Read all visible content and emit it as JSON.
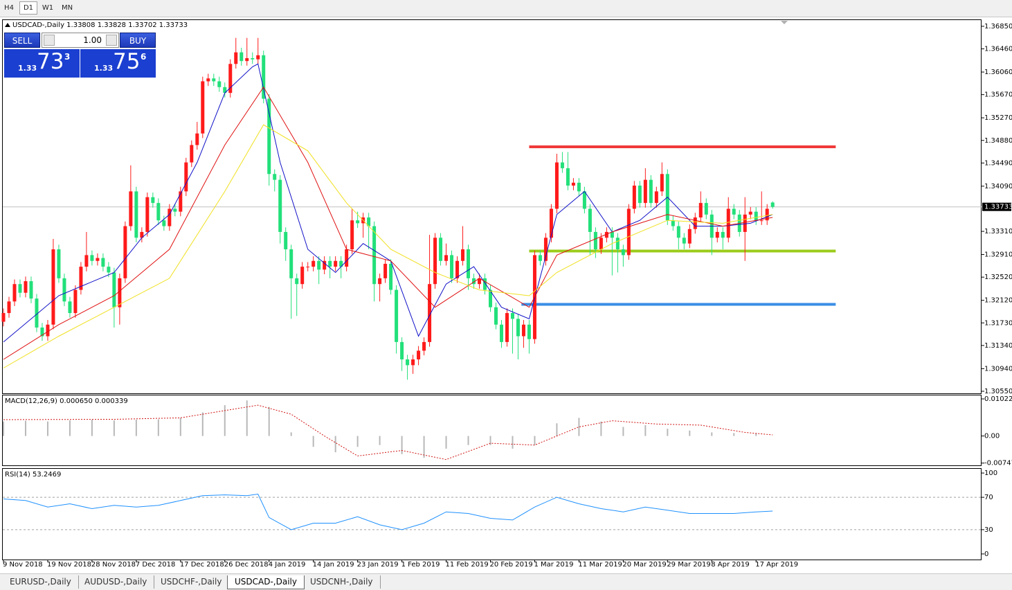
{
  "toolbar": {
    "timeframes": [
      "H4",
      "D1",
      "W1",
      "MN"
    ]
  },
  "trade_panel": {
    "sell": "SELL",
    "lot": "1.00",
    "buy": "BUY",
    "bid": {
      "big": "1.33",
      "pips": "73",
      "frac": "3"
    },
    "ask": {
      "big": "1.33",
      "pips": "75",
      "frac": "6"
    }
  },
  "chart_data": [
    {
      "type": "candlestick",
      "title": "USDCAD-,Daily  1.33808 1.33828 1.33702 1.33733",
      "up_color": "#ff1a1a",
      "down_color": "#22e07a",
      "xlim": [
        -0.125,
        176.75
      ],
      "xticks": [
        {
          "value": 0,
          "label": "9 Nov 2018"
        },
        {
          "value": 8,
          "label": "19 Nov 2018"
        },
        {
          "value": 16,
          "label": "28 Nov 2018"
        },
        {
          "value": 24,
          "label": "7 Dec 2018"
        },
        {
          "value": 32,
          "label": "17 Dec 2018"
        },
        {
          "value": 40,
          "label": "26 Dec 2018"
        },
        {
          "value": 48,
          "label": "4 Jan 2019"
        },
        {
          "value": 56,
          "label": "14 Jan 2019"
        },
        {
          "value": 64,
          "label": "23 Jan 2019"
        },
        {
          "value": 72,
          "label": "1 Feb 2019"
        },
        {
          "value": 80,
          "label": "11 Feb 2019"
        },
        {
          "value": 88,
          "label": "20 Feb 2019"
        },
        {
          "value": 96,
          "label": "1 Mar 2019"
        },
        {
          "value": 104,
          "label": "11 Mar 2019"
        },
        {
          "value": 112,
          "label": "20 Mar 2019"
        },
        {
          "value": 120,
          "label": "29 Mar 2019"
        },
        {
          "value": 128,
          "label": "8 Apr 2019"
        },
        {
          "value": 136,
          "label": "17 Apr 2019"
        }
      ],
      "ylim": [
        1.30514,
        1.36957
      ],
      "yticks": [
        {
          "value": 1.3685,
          "label": "1.36850"
        },
        {
          "value": 1.3646,
          "label": "1.36460"
        },
        {
          "value": 1.3606,
          "label": "1.36060"
        },
        {
          "value": 1.3567,
          "label": "1.35670"
        },
        {
          "value": 1.3527,
          "label": "1.35270"
        },
        {
          "value": 1.3488,
          "label": "1.34880"
        },
        {
          "value": 1.3449,
          "label": "1.34490"
        },
        {
          "value": 1.3409,
          "label": "1.34090"
        },
        {
          "value": 1.3331,
          "label": "1.33310"
        },
        {
          "value": 1.3291,
          "label": "1.32910"
        },
        {
          "value": 1.3252,
          "label": "1.32520"
        },
        {
          "value": 1.3212,
          "label": "1.32120"
        },
        {
          "value": 1.3173,
          "label": "1.31730"
        },
        {
          "value": 1.3134,
          "label": "1.31340"
        },
        {
          "value": 1.3094,
          "label": "1.30940"
        },
        {
          "value": 1.3055,
          "label": "1.30550"
        }
      ],
      "current_price": 1.33733,
      "open": [
        1.3175,
        1.319,
        1.321,
        1.324,
        1.3225,
        1.3245,
        1.3215,
        1.3165,
        1.315,
        1.317,
        1.33,
        1.325,
        1.321,
        1.319,
        1.323,
        1.327,
        1.329,
        1.328,
        1.3285,
        1.327,
        1.326,
        1.32,
        1.325,
        1.334,
        1.34,
        1.332,
        1.333,
        1.339,
        1.338,
        1.335,
        1.334,
        1.337,
        1.3365,
        1.34,
        1.345,
        1.348,
        1.35,
        1.359,
        1.3595,
        1.359,
        1.358,
        1.357,
        1.362,
        1.364,
        1.3625,
        1.363,
        1.3628,
        1.3635,
        1.356,
        1.343,
        1.342,
        1.333,
        1.33,
        1.325,
        1.324,
        1.327,
        1.327,
        1.328,
        1.3265,
        1.328,
        1.327,
        1.328,
        1.327,
        1.33,
        1.335,
        1.3345,
        1.3355,
        1.334,
        1.324,
        1.325,
        1.3275,
        1.323,
        1.314,
        1.311,
        1.31,
        1.311,
        1.3125,
        1.314,
        1.324,
        1.332,
        1.328,
        1.329,
        1.325,
        1.328,
        1.33,
        1.325,
        1.324,
        1.325,
        1.323,
        1.32,
        1.317,
        1.314,
        1.319,
        1.318,
        1.315,
        1.317,
        1.3145,
        1.329,
        1.328,
        1.332,
        1.337,
        1.345,
        1.344,
        1.341,
        1.3415,
        1.34,
        1.337,
        1.333,
        1.33,
        1.332,
        1.333,
        1.332,
        1.33,
        1.329,
        1.337,
        1.341,
        1.338,
        1.342,
        1.338,
        1.34,
        1.343,
        1.335,
        1.334,
        1.332,
        1.331,
        1.3335,
        1.3355,
        1.338,
        1.336,
        1.332,
        1.333,
        1.332,
        1.337,
        1.336,
        1.333,
        1.336,
        1.3365,
        1.335,
        1.335,
        1.33808
      ],
      "high": [
        1.3198,
        1.3218,
        1.3248,
        1.3248,
        1.3253,
        1.3253,
        1.3223,
        1.3173,
        1.3178,
        1.3318,
        1.3308,
        1.3258,
        1.3218,
        1.3238,
        1.3278,
        1.333,
        1.3298,
        1.3293,
        1.3293,
        1.3278,
        1.3268,
        1.3258,
        1.3348,
        1.3445,
        1.3408,
        1.3338,
        1.3398,
        1.3398,
        1.3388,
        1.3358,
        1.3378,
        1.3378,
        1.3408,
        1.3458,
        1.3488,
        1.352,
        1.3598,
        1.3603,
        1.3603,
        1.3598,
        1.3588,
        1.3628,
        1.3665,
        1.3648,
        1.3665,
        1.364,
        1.3665,
        1.3643,
        1.3568,
        1.3438,
        1.3428,
        1.3338,
        1.3308,
        1.3258,
        1.3278,
        1.3278,
        1.3288,
        1.3288,
        1.3288,
        1.3288,
        1.3288,
        1.3288,
        1.3308,
        1.337,
        1.3365,
        1.3363,
        1.3363,
        1.3348,
        1.3258,
        1.3283,
        1.3283,
        1.3238,
        1.3148,
        1.3118,
        1.3118,
        1.3133,
        1.3148,
        1.3325,
        1.3328,
        1.3328,
        1.331,
        1.3298,
        1.3288,
        1.334,
        1.3308,
        1.3258,
        1.3258,
        1.3258,
        1.3238,
        1.3208,
        1.3178,
        1.3198,
        1.3198,
        1.3188,
        1.3178,
        1.3178,
        1.3298,
        1.3298,
        1.3328,
        1.3378,
        1.3465,
        1.3468,
        1.3468,
        1.3423,
        1.3423,
        1.3408,
        1.3378,
        1.3338,
        1.3328,
        1.3338,
        1.3338,
        1.3328,
        1.3308,
        1.3378,
        1.3418,
        1.3418,
        1.344,
        1.3428,
        1.3408,
        1.345,
        1.3438,
        1.3358,
        1.3348,
        1.3328,
        1.3343,
        1.3363,
        1.34,
        1.3388,
        1.3368,
        1.3338,
        1.3338,
        1.339,
        1.3378,
        1.3368,
        1.339,
        1.3373,
        1.3373,
        1.34,
        1.3378,
        1.33828
      ],
      "low": [
        1.3167,
        1.3182,
        1.3202,
        1.3217,
        1.3217,
        1.3207,
        1.3157,
        1.3142,
        1.3142,
        1.3162,
        1.3242,
        1.3202,
        1.3182,
        1.3182,
        1.3222,
        1.3262,
        1.3272,
        1.3272,
        1.3262,
        1.3252,
        1.3165,
        1.317,
        1.3242,
        1.3332,
        1.3312,
        1.3312,
        1.3322,
        1.3372,
        1.3342,
        1.3332,
        1.3332,
        1.3357,
        1.3357,
        1.3392,
        1.3442,
        1.3472,
        1.3492,
        1.3582,
        1.3582,
        1.3572,
        1.3562,
        1.3562,
        1.3612,
        1.3617,
        1.3617,
        1.362,
        1.362,
        1.3552,
        1.341,
        1.34,
        1.331,
        1.328,
        1.318,
        1.3185,
        1.3232,
        1.3262,
        1.3262,
        1.324,
        1.3257,
        1.325,
        1.3262,
        1.325,
        1.3262,
        1.3292,
        1.3337,
        1.332,
        1.33,
        1.321,
        1.321,
        1.3242,
        1.3222,
        1.312,
        1.309,
        1.3075,
        1.3085,
        1.31,
        1.3117,
        1.3132,
        1.3232,
        1.3272,
        1.3272,
        1.3242,
        1.3242,
        1.3272,
        1.323,
        1.3232,
        1.3232,
        1.3222,
        1.3192,
        1.3162,
        1.313,
        1.3132,
        1.312,
        1.311,
        1.313,
        1.312,
        1.3137,
        1.3272,
        1.3272,
        1.3312,
        1.3362,
        1.3432,
        1.3402,
        1.3402,
        1.3392,
        1.3362,
        1.329,
        1.3285,
        1.3292,
        1.3312,
        1.3255,
        1.326,
        1.327,
        1.3282,
        1.3362,
        1.3372,
        1.3372,
        1.3372,
        1.3372,
        1.3392,
        1.3342,
        1.3332,
        1.33,
        1.33,
        1.3302,
        1.3327,
        1.3347,
        1.3352,
        1.329,
        1.3312,
        1.33,
        1.3312,
        1.3352,
        1.3322,
        1.328,
        1.3352,
        1.3342,
        1.3342,
        1.3342,
        1.33702
      ],
      "close": [
        1.319,
        1.321,
        1.324,
        1.3225,
        1.3245,
        1.3215,
        1.3165,
        1.315,
        1.317,
        1.33,
        1.325,
        1.321,
        1.319,
        1.323,
        1.327,
        1.329,
        1.328,
        1.3285,
        1.327,
        1.326,
        1.32,
        1.325,
        1.334,
        1.34,
        1.332,
        1.333,
        1.339,
        1.338,
        1.335,
        1.334,
        1.337,
        1.3365,
        1.34,
        1.345,
        1.348,
        1.35,
        1.359,
        1.3595,
        1.359,
        1.358,
        1.357,
        1.362,
        1.364,
        1.3625,
        1.363,
        1.3628,
        1.3635,
        1.356,
        1.343,
        1.342,
        1.333,
        1.33,
        1.325,
        1.324,
        1.327,
        1.327,
        1.328,
        1.3265,
        1.328,
        1.327,
        1.328,
        1.327,
        1.33,
        1.335,
        1.3345,
        1.3355,
        1.334,
        1.324,
        1.325,
        1.3275,
        1.323,
        1.314,
        1.311,
        1.31,
        1.311,
        1.3125,
        1.314,
        1.324,
        1.332,
        1.328,
        1.329,
        1.325,
        1.328,
        1.33,
        1.325,
        1.324,
        1.325,
        1.323,
        1.32,
        1.317,
        1.314,
        1.319,
        1.318,
        1.315,
        1.317,
        1.3145,
        1.329,
        1.328,
        1.332,
        1.337,
        1.345,
        1.344,
        1.341,
        1.3415,
        1.34,
        1.337,
        1.333,
        1.33,
        1.332,
        1.333,
        1.332,
        1.33,
        1.329,
        1.337,
        1.341,
        1.338,
        1.342,
        1.338,
        1.34,
        1.343,
        1.335,
        1.334,
        1.332,
        1.331,
        1.3335,
        1.3355,
        1.338,
        1.336,
        1.332,
        1.333,
        1.332,
        1.337,
        1.336,
        1.333,
        1.336,
        1.3365,
        1.335,
        1.335,
        1.337,
        1.33733
      ],
      "series": [
        {
          "color": "#1010c8",
          "x": [
            0,
            10,
            20,
            25,
            30,
            35,
            40,
            45,
            46,
            50,
            55,
            60,
            65,
            70,
            75,
            80,
            85,
            90,
            95,
            100,
            105,
            110,
            115,
            120,
            125,
            130,
            135,
            139
          ],
          "values": [
            1.314,
            1.322,
            1.326,
            1.332,
            1.336,
            1.345,
            1.357,
            1.3615,
            1.362,
            1.345,
            1.33,
            1.326,
            1.331,
            1.328,
            1.315,
            1.324,
            1.327,
            1.32,
            1.318,
            1.336,
            1.34,
            1.333,
            1.335,
            1.339,
            1.334,
            1.334,
            1.3345,
            1.336
          ]
        },
        {
          "color": "#e01010",
          "x": [
            0,
            10,
            20,
            30,
            40,
            47,
            55,
            62,
            70,
            78,
            86,
            95,
            100,
            110,
            120,
            130,
            139
          ],
          "values": [
            1.311,
            1.317,
            1.322,
            1.33,
            1.348,
            1.358,
            1.345,
            1.33,
            1.328,
            1.32,
            1.325,
            1.32,
            1.329,
            1.333,
            1.336,
            1.334,
            1.3355
          ]
        },
        {
          "color": "#f0e020",
          "x": [
            0,
            10,
            20,
            30,
            40,
            47,
            55,
            62,
            70,
            78,
            86,
            95,
            100,
            110,
            120,
            130,
            139
          ],
          "values": [
            1.3095,
            1.315,
            1.32,
            1.325,
            1.34,
            1.3515,
            1.347,
            1.338,
            1.33,
            1.326,
            1.323,
            1.322,
            1.326,
            1.331,
            1.335,
            1.3345,
            1.336
          ]
        }
      ],
      "levels": [
        {
          "value": 1.3477,
          "color": "#f03a3a",
          "x": [
            95,
            150.4
          ]
        },
        {
          "value": 1.3297,
          "color": "#9ccc1c",
          "x": [
            95,
            150.4
          ]
        },
        {
          "value": 1.3205,
          "color": "#3a8ee6",
          "x": [
            93.6,
            150.4
          ]
        }
      ]
    },
    {
      "type": "macd",
      "title": "MACD(12,26,9) 0.000650 0.000339",
      "ylim": [
        -0.0081,
        0.01119
      ],
      "yticks": [
        0.010229,
        {
          "value": 0,
          "label": "0.00"
        },
        -0.007477
      ],
      "series": [
        {
          "style": "bar",
          "color": "#b8b8b8",
          "x": [
            0,
            4,
            8,
            12,
            16,
            20,
            24,
            28,
            32,
            36,
            40,
            44,
            48,
            52,
            56,
            60,
            64,
            68,
            72,
            76,
            80,
            84,
            88,
            92,
            96,
            100,
            104,
            108,
            112,
            116,
            120,
            124,
            128,
            132,
            136
          ],
          "values": [
            0.004,
            0.0042,
            0.004,
            0.0043,
            0.0045,
            0.0043,
            0.0045,
            0.0046,
            0.005,
            0.0065,
            0.0085,
            0.0098,
            0.008,
            0.001,
            -0.003,
            -0.0045,
            -0.003,
            -0.0025,
            -0.005,
            -0.006,
            -0.0035,
            -0.0025,
            -0.0025,
            -0.0035,
            -0.0025,
            0.0035,
            0.005,
            0.004,
            0.0025,
            0.003,
            0.002,
            0.0015,
            0.001,
            0.0008,
            0.0007
          ]
        },
        {
          "style": "dotted",
          "color": "#d01010",
          "x": [
            0,
            20,
            32,
            40,
            46,
            52,
            58,
            64,
            72,
            80,
            88,
            96,
            104,
            110,
            118,
            126,
            134,
            139
          ],
          "values": [
            0.0045,
            0.0046,
            0.005,
            0.007,
            0.0085,
            0.006,
            0,
            -0.0055,
            -0.004,
            -0.0065,
            -0.002,
            -0.0025,
            0.0025,
            0.0042,
            0.0033,
            0.003,
            0.001,
            0.0003
          ]
        }
      ]
    },
    {
      "type": "line",
      "title": "RSI(14) 53.2469",
      "ylim": [
        -6.9,
        105.2
      ],
      "yticks": [
        100,
        70,
        30,
        0
      ],
      "levels": [
        70,
        30
      ],
      "series": [
        {
          "color": "#1e90ff",
          "x": [
            0,
            4,
            8,
            12,
            16,
            20,
            24,
            28,
            32,
            36,
            40,
            44,
            46,
            48,
            52,
            56,
            60,
            64,
            68,
            72,
            76,
            80,
            84,
            88,
            92,
            96,
            100,
            104,
            108,
            112,
            116,
            120,
            124,
            128,
            132,
            136,
            139
          ],
          "values": [
            68,
            66,
            58,
            62,
            56,
            60,
            58,
            60,
            66,
            72,
            73,
            72,
            74,
            45,
            30,
            38,
            38,
            46,
            36,
            30,
            38,
            52,
            50,
            44,
            42,
            58,
            70,
            62,
            56,
            52,
            58,
            54,
            50,
            50,
            50,
            52,
            53
          ]
        }
      ]
    }
  ],
  "tabs": [
    "EURUSD-,Daily",
    "AUDUSD-,Daily",
    "USDCHF-,Daily",
    "USDCAD-,Daily",
    "USDCNH-,Daily"
  ]
}
